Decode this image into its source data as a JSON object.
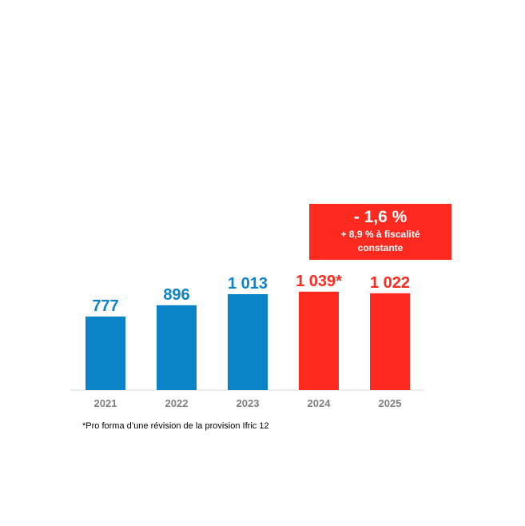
{
  "colors": {
    "blue": "#0a84c6",
    "red": "#ff2a1f",
    "tick": "#7f7f7f"
  },
  "callout": {
    "main": "- 1,6 %",
    "sub": "+ 8,9 % à fiscalité constante"
  },
  "footnote": "*Pro forma d’une révision de la provision Ifric 12",
  "chart_data": {
    "type": "bar",
    "categories": [
      "2021",
      "2022",
      "2023",
      "2024",
      "2025"
    ],
    "values": [
      777,
      896,
      1013,
      1039,
      1022
    ],
    "value_labels": [
      "777",
      "896",
      "1 013",
      "1 039*",
      "1 022"
    ],
    "bar_colors": [
      "#0a84c6",
      "#0a84c6",
      "#0a84c6",
      "#ff2a1f",
      "#ff2a1f"
    ],
    "title": "",
    "xlabel": "",
    "ylabel": "",
    "grid": false,
    "legend": "none"
  }
}
